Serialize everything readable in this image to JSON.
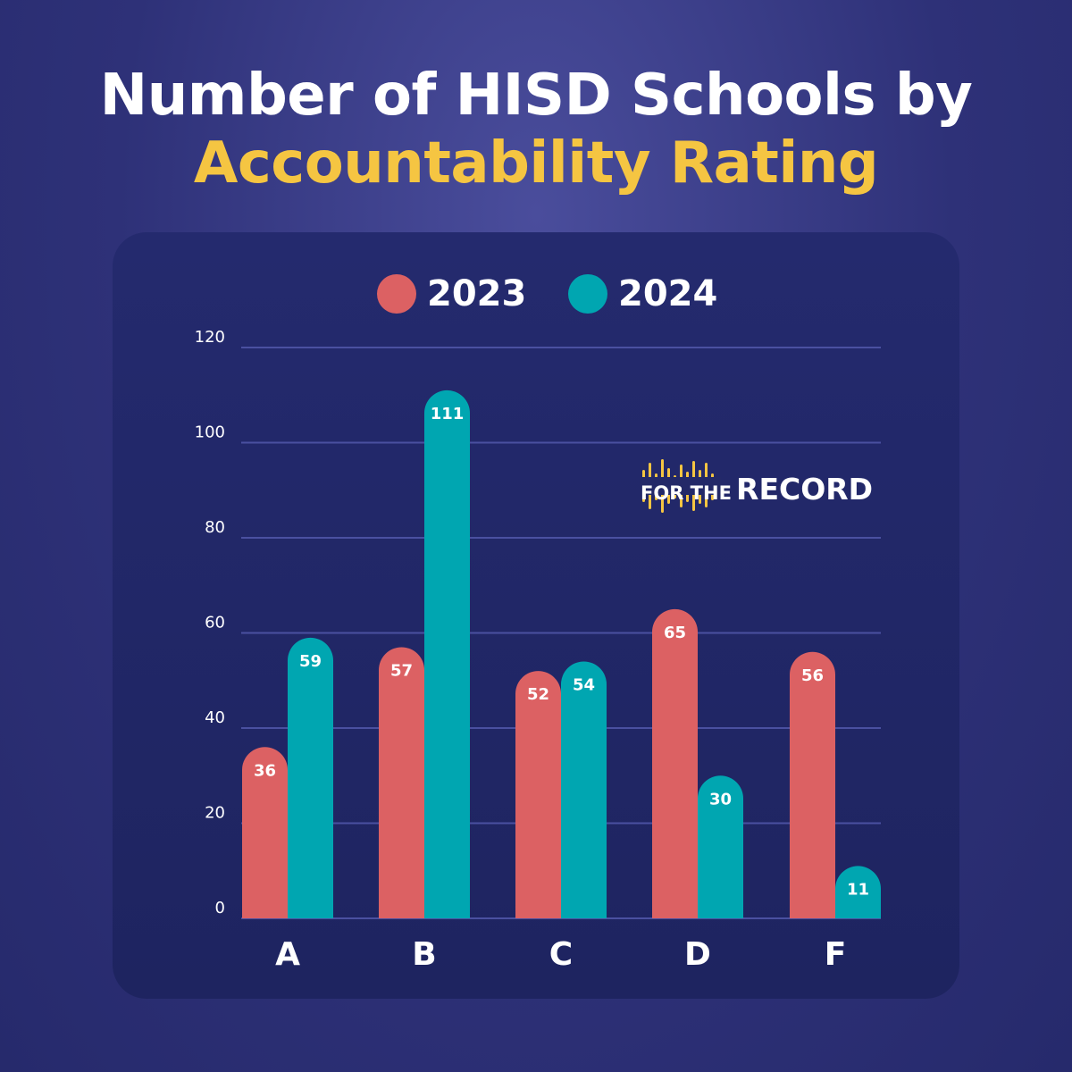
{
  "title": {
    "line1": "Number of HISD Schools by",
    "line2": "Accountability Rating"
  },
  "colors": {
    "background": "#2e3178",
    "panel": "#222868",
    "accent": "#f5c542",
    "series_2023": "#dc6163",
    "series_2024": "#00a6b1",
    "gridline": "#4a50a0"
  },
  "brand": {
    "text_small": "FOR THE",
    "text_big": "RECORD"
  },
  "chart_data": {
    "type": "bar",
    "categories": [
      "A",
      "B",
      "C",
      "D",
      "F"
    ],
    "series": [
      {
        "name": "2023",
        "values": [
          36,
          57,
          52,
          65,
          56
        ]
      },
      {
        "name": "2024",
        "values": [
          59,
          111,
          54,
          30,
          11
        ]
      }
    ],
    "yticks": [
      0,
      20,
      40,
      60,
      80,
      100,
      120
    ],
    "ylim": [
      0,
      120
    ],
    "grid": true,
    "legend": "top-center"
  }
}
